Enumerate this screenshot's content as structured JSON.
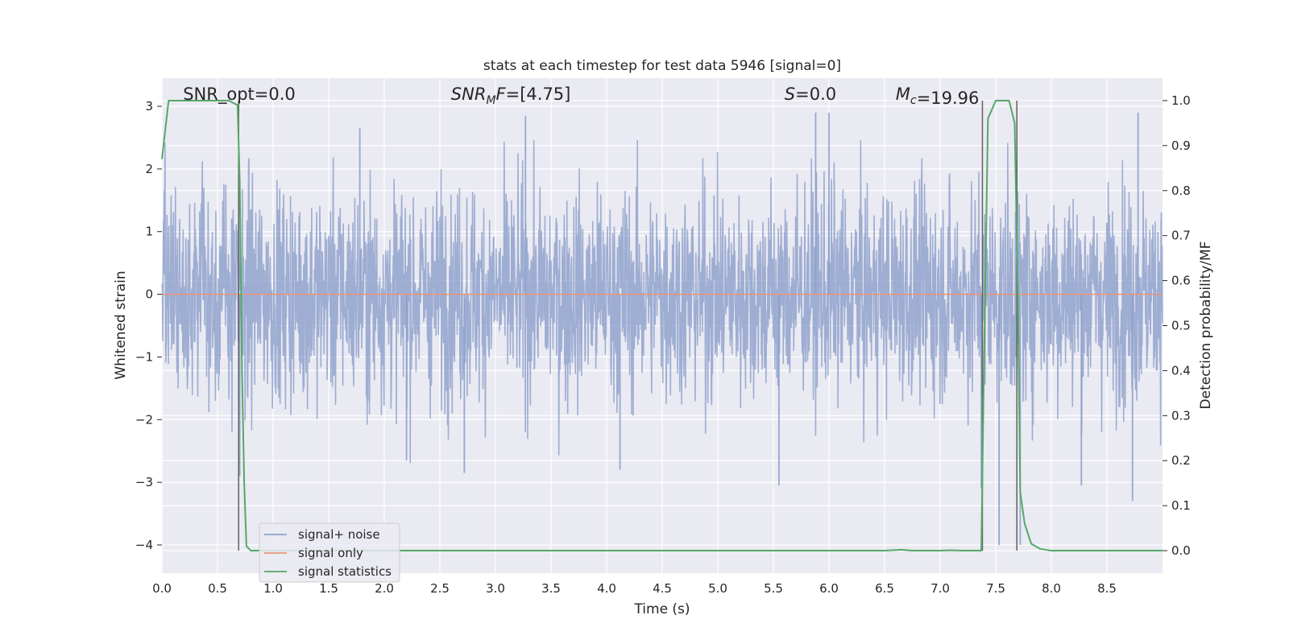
{
  "chart_data": {
    "type": "line",
    "title": "stats at each timestep for test data 5946 [signal=0]",
    "xlabel": "Time (s)",
    "ylabel": "Whitened strain",
    "ylabel_right": "Detection probability/MF",
    "xlim": [
      0,
      9.0
    ],
    "ylim": [
      -4.45,
      3.45
    ],
    "ylim_right": [
      -0.05,
      1.05
    ],
    "x_ticks": [
      0.0,
      0.5,
      1.0,
      1.5,
      2.0,
      2.5,
      3.0,
      3.5,
      4.0,
      4.5,
      5.0,
      5.5,
      6.0,
      6.5,
      7.0,
      7.5,
      8.0,
      8.5
    ],
    "x_tick_labels": [
      "0.0",
      "0.5",
      "1.0",
      "1.5",
      "2.0",
      "2.5",
      "3.0",
      "3.5",
      "4.0",
      "4.5",
      "5.0",
      "5.5",
      "6.0",
      "6.5",
      "7.0",
      "7.5",
      "8.0",
      "8.5"
    ],
    "y_ticks": [
      3,
      2,
      1,
      0,
      -1,
      -2,
      -3,
      -4
    ],
    "y_tick_labels": [
      "3",
      "2",
      "1",
      "0",
      "−1",
      "−2",
      "−3",
      "−4"
    ],
    "y2_ticks": [
      1.0,
      0.9,
      0.8,
      0.7,
      0.6,
      0.5,
      0.4,
      0.3,
      0.2,
      0.1,
      0.0
    ],
    "y2_tick_labels": [
      "1.0",
      "0.9",
      "0.8",
      "0.7",
      "0.6",
      "0.5",
      "0.4",
      "0.3",
      "0.2",
      "0.1",
      "0.0"
    ],
    "grid": true,
    "legend_position": "lower-left",
    "series": [
      {
        "name": "signal+ noise",
        "color": "#8da0cb",
        "axis": "left",
        "description": "whitened noise spanning about -3 to 3 across 0-9 s",
        "noise_sigma": 0.85,
        "noise_peaks": [
          {
            "x": 0.7,
            "y": -2.9
          },
          {
            "x": 1.78,
            "y": 2.65
          },
          {
            "x": 2.2,
            "y": -2.65
          },
          {
            "x": 2.72,
            "y": -2.85
          },
          {
            "x": 3.27,
            "y": 2.85
          },
          {
            "x": 4.12,
            "y": -2.8
          },
          {
            "x": 5.55,
            "y": -3.05
          },
          {
            "x": 5.88,
            "y": 2.9
          },
          {
            "x": 6.0,
            "y": 2.9
          },
          {
            "x": 7.37,
            "y": -3.1
          },
          {
            "x": 7.53,
            "y": -4.0
          },
          {
            "x": 7.72,
            "y": -4.0
          },
          {
            "x": 8.27,
            "y": -3.05
          },
          {
            "x": 8.73,
            "y": -3.3
          },
          {
            "x": 8.78,
            "y": 2.9
          }
        ]
      },
      {
        "name": "signal only",
        "color": "#e5967a",
        "axis": "left",
        "x": [
          0.0,
          9.0
        ],
        "y": [
          0.0,
          0.0
        ]
      },
      {
        "name": "signal statistics",
        "color": "#55a868",
        "axis": "right",
        "x": [
          0.0,
          0.06,
          0.12,
          0.3,
          0.6,
          0.68,
          0.7,
          0.72,
          0.74,
          0.76,
          0.8,
          1.0,
          2.0,
          4.0,
          6.0,
          6.5,
          6.65,
          6.75,
          7.0,
          7.1,
          7.2,
          7.37,
          7.39,
          7.43,
          7.5,
          7.62,
          7.67,
          7.7,
          7.72,
          7.76,
          7.82,
          7.9,
          8.0,
          9.0
        ],
        "y": [
          0.87,
          1.0,
          1.0,
          1.0,
          1.0,
          0.99,
          0.82,
          0.4,
          0.15,
          0.01,
          0.0,
          0.0,
          0.0,
          0.0,
          0.0,
          0.0,
          0.002,
          0.0,
          0.0,
          0.001,
          0.0,
          0.0,
          0.35,
          0.96,
          1.0,
          1.0,
          0.95,
          0.55,
          0.13,
          0.06,
          0.015,
          0.004,
          0.0,
          0.0
        ]
      }
    ],
    "vertical_lines": [
      0.69,
      7.38,
      7.69
    ],
    "vertical_line_color": "#606060",
    "annotations": [
      {
        "text": "SNR_opt=0.0",
        "x": 0.19,
        "italic_prefix": false
      },
      {
        "text": "SNR_MF=[4.75]",
        "x": 2.6,
        "italic_prefix": true,
        "display": {
          "base": "SNR",
          "sub": "M",
          "after": "F",
          "rest": "=[4.75]"
        }
      },
      {
        "text": "S=0.0",
        "x": 5.6,
        "italic_prefix": true,
        "display": {
          "base": "S",
          "sub": "",
          "after": "",
          "rest": "=0.0"
        }
      },
      {
        "text": "M_c=19.96",
        "x": 6.6,
        "italic_prefix": true,
        "display": {
          "base": "M",
          "sub": "c",
          "after": "",
          "rest": "=19.96"
        }
      }
    ]
  },
  "colors": {
    "plot_background": "#eaeaf2",
    "grid": "#ffffff",
    "text": "#262626"
  }
}
